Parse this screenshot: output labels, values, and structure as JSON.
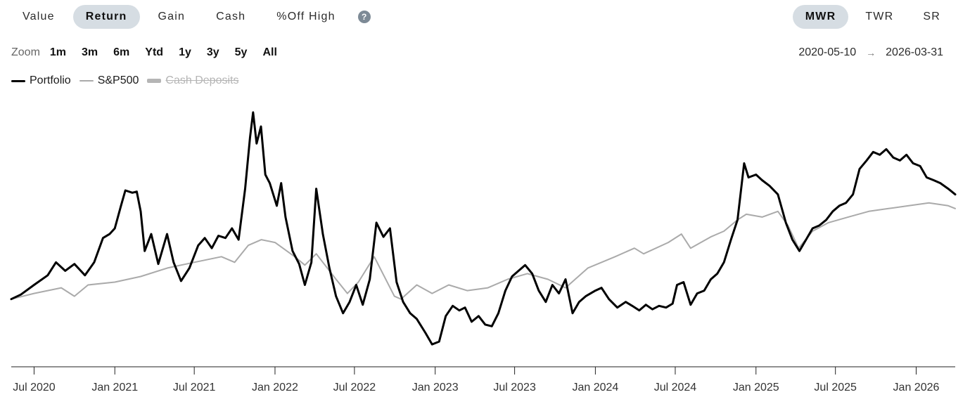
{
  "metric_tabs": [
    {
      "label": "Value",
      "active": false
    },
    {
      "label": "Return",
      "active": true
    },
    {
      "label": "Gain",
      "active": false
    },
    {
      "label": "Cash",
      "active": false
    },
    {
      "label": "%Off High",
      "active": false
    }
  ],
  "help_icon": "question-circle-icon",
  "help_glyph": "?",
  "mode_tabs": [
    {
      "label": "MWR",
      "active": true
    },
    {
      "label": "TWR",
      "active": false
    },
    {
      "label": "SR",
      "active": false
    }
  ],
  "zoom": {
    "label": "Zoom",
    "options": [
      "1m",
      "3m",
      "6m",
      "Ytd",
      "1y",
      "3y",
      "5y",
      "All"
    ]
  },
  "date_range": {
    "start": "2020-05-10",
    "end": "2026-03-31",
    "arrow_icon": "arrow-right-icon"
  },
  "legend": [
    {
      "name": "Portfolio",
      "color": "#000000",
      "hidden": false
    },
    {
      "name": "S&P500",
      "color": "#aaaaaa",
      "hidden": false
    },
    {
      "name": "Cash Deposits",
      "color": "#b5b5b5",
      "hidden": true
    }
  ],
  "chart_data": {
    "type": "line",
    "x_start": "2020-05-10",
    "x_end": "2026-03-31",
    "x_ticks": [
      {
        "date": "2020-07-01",
        "label": "Jul 2020"
      },
      {
        "date": "2021-01-01",
        "label": "Jan 2021"
      },
      {
        "date": "2021-07-01",
        "label": "Jul 2021"
      },
      {
        "date": "2022-01-01",
        "label": "Jan 2022"
      },
      {
        "date": "2022-07-01",
        "label": "Jul 2022"
      },
      {
        "date": "2023-01-01",
        "label": "Jan 2023"
      },
      {
        "date": "2023-07-01",
        "label": "Jul 2023"
      },
      {
        "date": "2024-01-01",
        "label": "Jan 2024"
      },
      {
        "date": "2024-07-01",
        "label": "Jul 2024"
      },
      {
        "date": "2025-01-01",
        "label": "Jan 2025"
      },
      {
        "date": "2025-07-01",
        "label": "Jul 2025"
      },
      {
        "date": "2026-01-01",
        "label": "Jan 2026"
      }
    ],
    "y_axis_labels": false,
    "grid": false,
    "legend_position": "top-left",
    "series": [
      {
        "name": "Portfolio",
        "color": "#000000",
        "points": [
          [
            "2020-05-10",
            0.0
          ],
          [
            "2020-06-01",
            0.8
          ],
          [
            "2020-07-01",
            2.5
          ],
          [
            "2020-08-01",
            4.2
          ],
          [
            "2020-08-20",
            6.5
          ],
          [
            "2020-09-10",
            5.0
          ],
          [
            "2020-10-01",
            6.2
          ],
          [
            "2020-10-25",
            4.2
          ],
          [
            "2020-11-15",
            6.5
          ],
          [
            "2020-12-05",
            10.8
          ],
          [
            "2020-12-20",
            11.5
          ],
          [
            "2021-01-01",
            12.5
          ],
          [
            "2021-01-15",
            16.5
          ],
          [
            "2021-01-25",
            19.2
          ],
          [
            "2021-02-10",
            18.8
          ],
          [
            "2021-02-20",
            19.0
          ],
          [
            "2021-03-01",
            15.5
          ],
          [
            "2021-03-10",
            8.5
          ],
          [
            "2021-03-25",
            11.5
          ],
          [
            "2021-04-10",
            6.2
          ],
          [
            "2021-04-30",
            11.5
          ],
          [
            "2021-05-15",
            6.5
          ],
          [
            "2021-06-01",
            3.2
          ],
          [
            "2021-06-20",
            5.5
          ],
          [
            "2021-07-10",
            9.5
          ],
          [
            "2021-07-25",
            10.8
          ],
          [
            "2021-08-10",
            9.0
          ],
          [
            "2021-08-25",
            11.2
          ],
          [
            "2021-09-10",
            10.8
          ],
          [
            "2021-09-25",
            12.5
          ],
          [
            "2021-10-10",
            10.5
          ],
          [
            "2021-10-25",
            19.5
          ],
          [
            "2021-11-05",
            28.5
          ],
          [
            "2021-11-12",
            33.0
          ],
          [
            "2021-11-20",
            27.5
          ],
          [
            "2021-11-30",
            30.5
          ],
          [
            "2021-12-10",
            22.0
          ],
          [
            "2021-12-20",
            20.5
          ],
          [
            "2022-01-05",
            16.5
          ],
          [
            "2022-01-15",
            20.5
          ],
          [
            "2022-01-25",
            14.5
          ],
          [
            "2022-02-10",
            8.5
          ],
          [
            "2022-02-25",
            6.2
          ],
          [
            "2022-03-10",
            2.5
          ],
          [
            "2022-03-25",
            6.5
          ],
          [
            "2022-04-05",
            19.5
          ],
          [
            "2022-04-20",
            11.5
          ],
          [
            "2022-05-05",
            5.5
          ],
          [
            "2022-05-20",
            0.5
          ],
          [
            "2022-06-05",
            -2.5
          ],
          [
            "2022-06-20",
            -0.5
          ],
          [
            "2022-07-05",
            2.5
          ],
          [
            "2022-07-20",
            -1.0
          ],
          [
            "2022-08-05",
            3.5
          ],
          [
            "2022-08-20",
            13.5
          ],
          [
            "2022-09-05",
            11.0
          ],
          [
            "2022-09-20",
            12.5
          ],
          [
            "2022-10-05",
            3.0
          ],
          [
            "2022-10-20",
            -0.5
          ],
          [
            "2022-11-05",
            -2.5
          ],
          [
            "2022-11-20",
            -3.5
          ],
          [
            "2022-12-10",
            -6.0
          ],
          [
            "2022-12-25",
            -8.0
          ],
          [
            "2023-01-10",
            -7.5
          ],
          [
            "2023-01-25",
            -3.0
          ],
          [
            "2023-02-10",
            -1.2
          ],
          [
            "2023-02-25",
            -2.0
          ],
          [
            "2023-03-10",
            -1.5
          ],
          [
            "2023-03-25",
            -4.0
          ],
          [
            "2023-04-10",
            -3.0
          ],
          [
            "2023-04-25",
            -4.5
          ],
          [
            "2023-05-10",
            -4.8
          ],
          [
            "2023-05-25",
            -2.5
          ],
          [
            "2023-06-10",
            1.5
          ],
          [
            "2023-06-25",
            4.0
          ],
          [
            "2023-07-10",
            5.0
          ],
          [
            "2023-07-25",
            6.0
          ],
          [
            "2023-08-10",
            4.5
          ],
          [
            "2023-08-25",
            1.5
          ],
          [
            "2023-09-10",
            -0.5
          ],
          [
            "2023-09-25",
            2.5
          ],
          [
            "2023-10-10",
            1.0
          ],
          [
            "2023-10-25",
            3.5
          ],
          [
            "2023-11-10",
            -2.5
          ],
          [
            "2023-11-25",
            -0.5
          ],
          [
            "2023-12-10",
            0.5
          ],
          [
            "2024-01-01",
            1.5
          ],
          [
            "2024-01-15",
            2.0
          ],
          [
            "2024-02-01",
            0.0
          ],
          [
            "2024-02-20",
            -1.5
          ],
          [
            "2024-03-10",
            -0.5
          ],
          [
            "2024-03-25",
            -1.2
          ],
          [
            "2024-04-10",
            -2.0
          ],
          [
            "2024-04-25",
            -1.0
          ],
          [
            "2024-05-10",
            -1.8
          ],
          [
            "2024-05-25",
            -1.2
          ],
          [
            "2024-06-10",
            -1.5
          ],
          [
            "2024-06-25",
            -0.8
          ],
          [
            "2024-07-05",
            2.5
          ],
          [
            "2024-07-20",
            3.0
          ],
          [
            "2024-08-05",
            -1.0
          ],
          [
            "2024-08-20",
            1.0
          ],
          [
            "2024-09-05",
            1.5
          ],
          [
            "2024-09-20",
            3.5
          ],
          [
            "2024-10-05",
            4.5
          ],
          [
            "2024-10-20",
            6.5
          ],
          [
            "2024-11-05",
            10.5
          ],
          [
            "2024-11-20",
            14.0
          ],
          [
            "2024-12-05",
            24.0
          ],
          [
            "2024-12-15",
            21.5
          ],
          [
            "2025-01-01",
            22.0
          ],
          [
            "2025-01-15",
            21.0
          ],
          [
            "2025-02-01",
            20.0
          ],
          [
            "2025-02-20",
            18.5
          ],
          [
            "2025-03-10",
            13.5
          ],
          [
            "2025-03-25",
            10.5
          ],
          [
            "2025-04-10",
            8.5
          ],
          [
            "2025-04-25",
            10.5
          ],
          [
            "2025-05-10",
            12.5
          ],
          [
            "2025-05-25",
            13.0
          ],
          [
            "2025-06-10",
            14.0
          ],
          [
            "2025-06-25",
            15.5
          ],
          [
            "2025-07-10",
            16.5
          ],
          [
            "2025-07-25",
            17.0
          ],
          [
            "2025-08-10",
            18.5
          ],
          [
            "2025-08-25",
            23.0
          ],
          [
            "2025-09-10",
            24.5
          ],
          [
            "2025-09-25",
            26.0
          ],
          [
            "2025-10-10",
            25.5
          ],
          [
            "2025-10-25",
            26.5
          ],
          [
            "2025-11-10",
            25.0
          ],
          [
            "2025-11-25",
            24.5
          ],
          [
            "2025-12-10",
            25.5
          ],
          [
            "2025-12-25",
            24.0
          ],
          [
            "2026-01-10",
            23.5
          ],
          [
            "2026-01-25",
            21.5
          ],
          [
            "2026-02-10",
            21.0
          ],
          [
            "2026-02-25",
            20.5
          ],
          [
            "2026-03-15",
            19.5
          ],
          [
            "2026-03-31",
            18.5
          ]
        ]
      },
      {
        "name": "S&P500",
        "color": "#aaaaaa",
        "points": [
          [
            "2020-05-10",
            0.0
          ],
          [
            "2020-07-01",
            1.0
          ],
          [
            "2020-09-01",
            2.0
          ],
          [
            "2020-10-01",
            0.5
          ],
          [
            "2020-11-01",
            2.5
          ],
          [
            "2021-01-01",
            3.0
          ],
          [
            "2021-03-01",
            4.0
          ],
          [
            "2021-05-01",
            5.5
          ],
          [
            "2021-07-01",
            6.5
          ],
          [
            "2021-09-01",
            7.5
          ],
          [
            "2021-10-01",
            6.5
          ],
          [
            "2021-11-01",
            9.5
          ],
          [
            "2021-12-01",
            10.5
          ],
          [
            "2022-01-01",
            10.0
          ],
          [
            "2022-02-15",
            7.5
          ],
          [
            "2022-03-10",
            6.0
          ],
          [
            "2022-04-05",
            8.0
          ],
          [
            "2022-05-20",
            3.5
          ],
          [
            "2022-06-15",
            1.0
          ],
          [
            "2022-07-10",
            3.0
          ],
          [
            "2022-08-15",
            7.5
          ],
          [
            "2022-09-30",
            0.5
          ],
          [
            "2022-10-15",
            0.0
          ],
          [
            "2022-11-20",
            2.5
          ],
          [
            "2022-12-25",
            1.0
          ],
          [
            "2023-02-01",
            2.5
          ],
          [
            "2023-03-15",
            1.5
          ],
          [
            "2023-05-01",
            2.0
          ],
          [
            "2023-06-15",
            3.5
          ],
          [
            "2023-07-30",
            4.5
          ],
          [
            "2023-09-15",
            3.5
          ],
          [
            "2023-10-25",
            2.0
          ],
          [
            "2023-12-15",
            5.5
          ],
          [
            "2024-02-15",
            7.5
          ],
          [
            "2024-03-30",
            9.0
          ],
          [
            "2024-04-20",
            8.0
          ],
          [
            "2024-06-15",
            10.0
          ],
          [
            "2024-07-15",
            11.5
          ],
          [
            "2024-08-05",
            9.0
          ],
          [
            "2024-09-20",
            11.0
          ],
          [
            "2024-10-20",
            12.0
          ],
          [
            "2024-11-20",
            14.0
          ],
          [
            "2024-12-10",
            15.0
          ],
          [
            "2025-01-15",
            14.5
          ],
          [
            "2025-02-20",
            15.5
          ],
          [
            "2025-03-15",
            13.0
          ],
          [
            "2025-04-08",
            9.0
          ],
          [
            "2025-05-10",
            12.0
          ],
          [
            "2025-06-15",
            13.5
          ],
          [
            "2025-07-30",
            14.5
          ],
          [
            "2025-09-15",
            15.5
          ],
          [
            "2025-10-30",
            16.0
          ],
          [
            "2025-12-15",
            16.5
          ],
          [
            "2026-01-30",
            17.0
          ],
          [
            "2026-03-15",
            16.5
          ],
          [
            "2026-03-31",
            16.0
          ]
        ]
      }
    ]
  }
}
